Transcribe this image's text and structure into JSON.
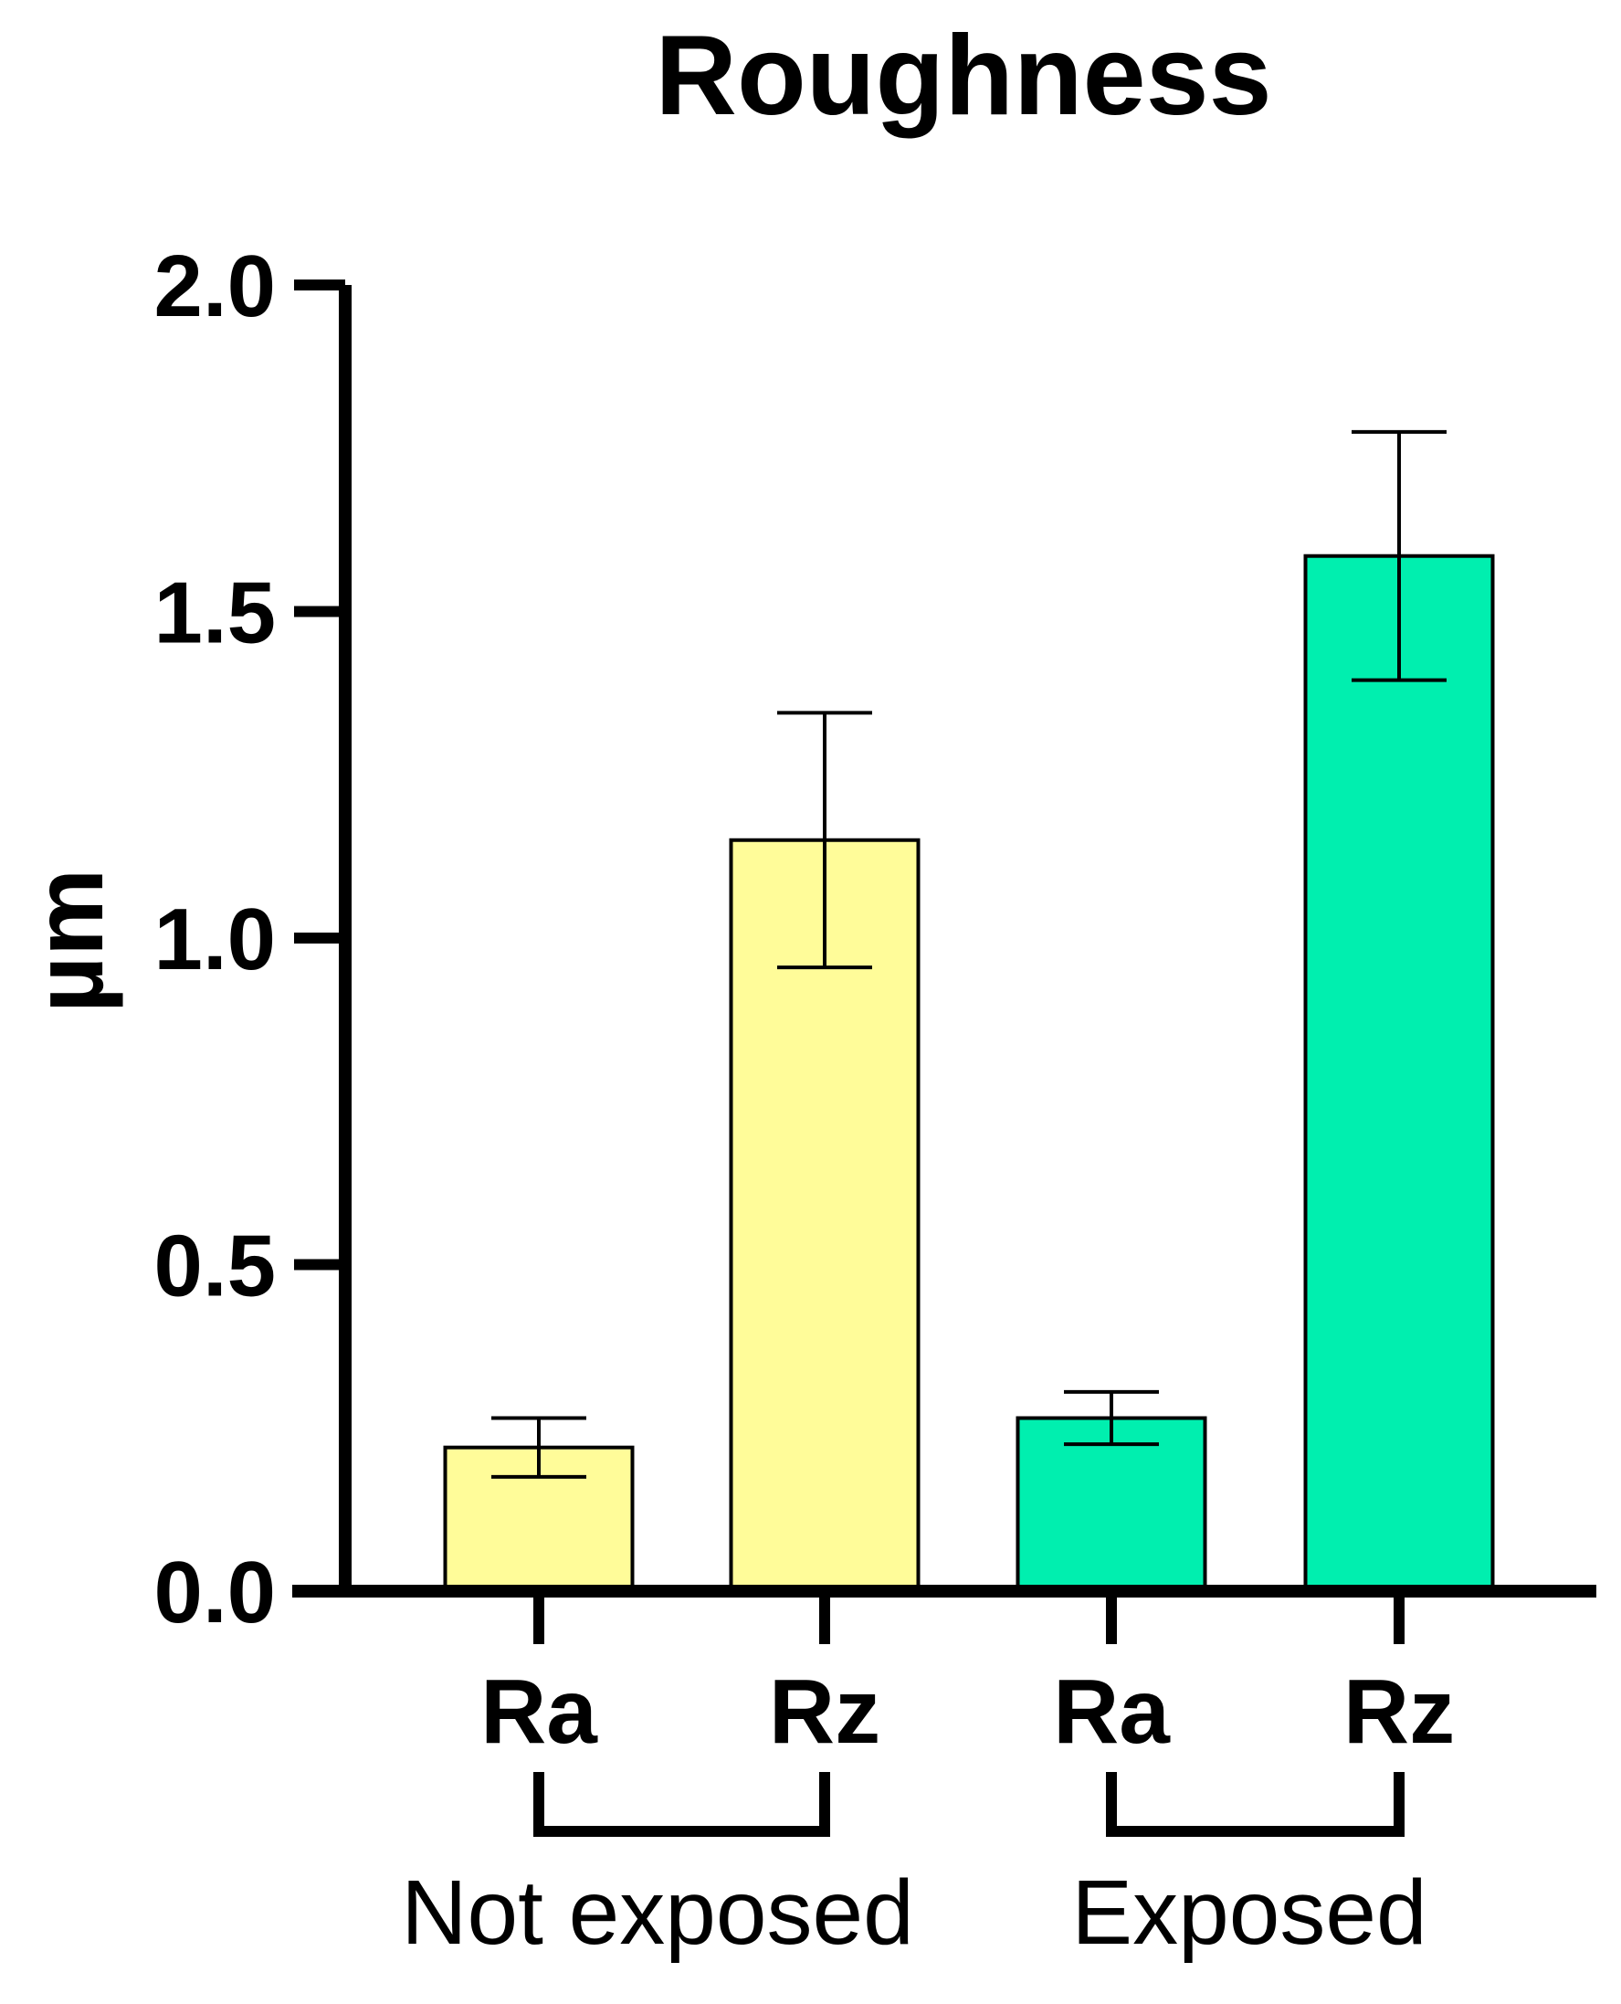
{
  "chart_data": {
    "type": "bar",
    "title": "Roughness",
    "ylabel": "µm",
    "xlabel": "",
    "ylim": [
      0,
      2.0
    ],
    "yticks": [
      "0.0",
      "0.5",
      "1.0",
      "1.5",
      "2.0"
    ],
    "categories": [
      "Ra",
      "Rz",
      "Ra",
      "Rz"
    ],
    "values": [
      0.22,
      1.15,
      0.265,
      1.585
    ],
    "errors": [
      0.045,
      0.195,
      0.04,
      0.19
    ],
    "colors": [
      "#FFFC99",
      "#FFFC99",
      "#00EFAF",
      "#00EFAF"
    ],
    "groups": [
      {
        "label": "Not exposed",
        "members": [
          0,
          1
        ]
      },
      {
        "label": "Exposed",
        "members": [
          2,
          3
        ]
      }
    ],
    "grid": false,
    "legend": "none"
  }
}
